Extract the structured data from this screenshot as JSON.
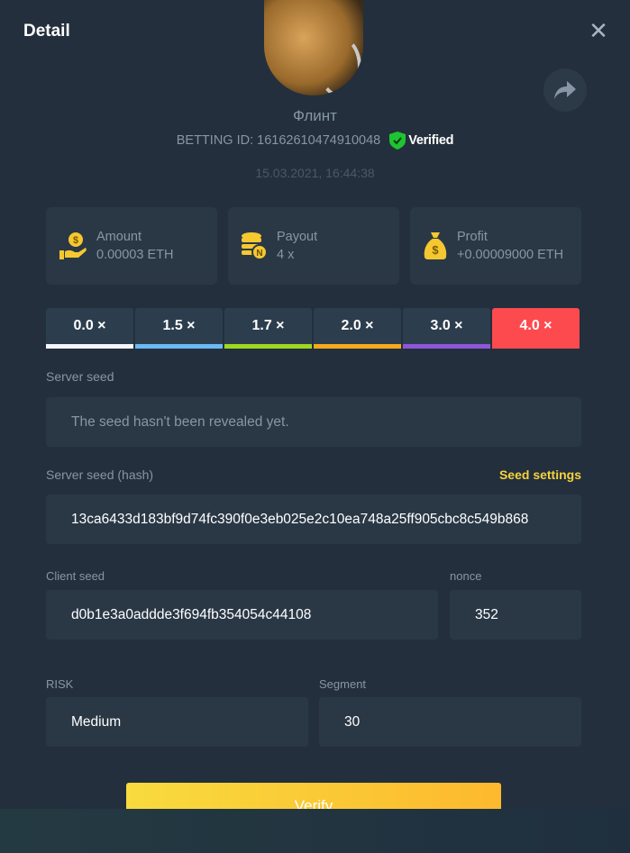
{
  "header": {
    "title": "Detail",
    "close_icon": "close-icon"
  },
  "user": {
    "name": "Флинт",
    "betting_id": "BETTING ID: 16162610474910048",
    "verified_label": "Verified",
    "date": "15.03.2021, 16:44:38"
  },
  "stats": [
    {
      "label": "Amount",
      "value": "0.00003 ETH",
      "icon": "hand-coin-icon"
    },
    {
      "label": "Payout",
      "value": "4 x",
      "icon": "coin-stack-icon"
    },
    {
      "label": "Profit",
      "value": "+0.00009000 ETH",
      "icon": "money-bag-icon"
    }
  ],
  "multipliers": [
    {
      "label": "0.0 ×",
      "color": "#f4f7fb"
    },
    {
      "label": "1.5 ×",
      "color": "#6bb9f6"
    },
    {
      "label": "1.7 ×",
      "color": "#a0d81f"
    },
    {
      "label": "2.0 ×",
      "color": "#f8a81c"
    },
    {
      "label": "3.0 ×",
      "color": "#8d57d8"
    },
    {
      "label": "4.0 ×",
      "color": "#fd4a4f",
      "selected": true
    }
  ],
  "server_seed": {
    "label": "Server seed",
    "value": "The seed hasn't been revealed yet."
  },
  "server_hash": {
    "label": "Server seed (hash)",
    "link": "Seed settings",
    "value": "13ca6433d183bf9d74fc390f0e3eb025e2c10ea748a25ff905cbc8c549b868"
  },
  "client_seed": {
    "label": "Client seed",
    "value": "d0b1e3a0addde3f694fb354054c44108"
  },
  "nonce": {
    "label": "nonce",
    "value": "352"
  },
  "risk": {
    "label": "RISK",
    "value": "Medium"
  },
  "segment": {
    "label": "Segment",
    "value": "30"
  },
  "verify_label": "Verify"
}
